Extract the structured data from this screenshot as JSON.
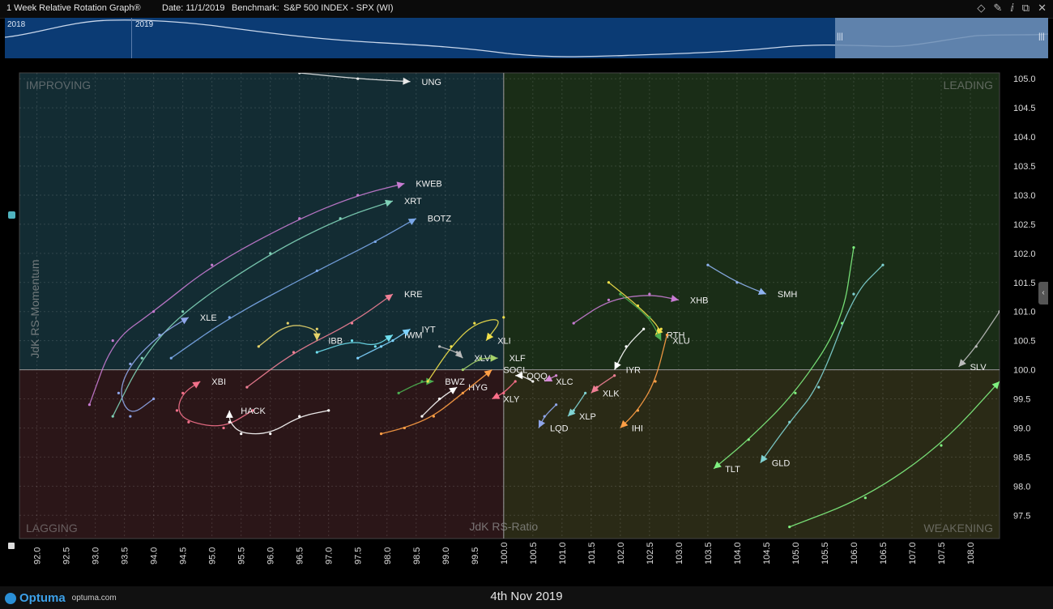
{
  "window": {
    "title": "1 Week Relative Rotation Graph®",
    "date_label": "Date: 11/1/2019",
    "benchmark_label": "Benchmark:",
    "benchmark_value": "S&P 500 INDEX - SPX (WI)"
  },
  "navigator": {
    "year_left": "2018",
    "year_right": "2019",
    "handle": "|||"
  },
  "footer": {
    "brand": "Optuma",
    "url": "optuma.com",
    "date": "4th Nov 2019"
  },
  "colors": {
    "improving": "#132c33",
    "leading": "#1a2d17",
    "lagging": "#2b1618",
    "weakening": "#2a2a16",
    "background": "#000000"
  },
  "chart_data": {
    "type": "scatter",
    "title": "1 Week Relative Rotation Graph®",
    "xlabel": "JdK RS-Ratio",
    "ylabel": "JdK RS-Momentum",
    "xlim": [
      91.7,
      108.5
    ],
    "ylim": [
      97.1,
      105.1
    ],
    "center": [
      100,
      100
    ],
    "grid": true,
    "x_ticks": [
      "92.0",
      "92.5",
      "93.0",
      "93.5",
      "94.0",
      "94.5",
      "95.0",
      "95.5",
      "96.0",
      "96.5",
      "97.0",
      "97.5",
      "98.0",
      "98.5",
      "99.0",
      "99.5",
      "100.0",
      "100.5",
      "101.0",
      "101.5",
      "102.0",
      "102.5",
      "103.0",
      "103.5",
      "104.0",
      "104.5",
      "105.0",
      "105.5",
      "106.0",
      "106.5",
      "107.0",
      "107.5",
      "108.0"
    ],
    "y_ticks": [
      "97.5",
      "98.0",
      "98.5",
      "99.0",
      "99.5",
      "100.0",
      "100.5",
      "101.0",
      "101.5",
      "102.0",
      "102.5",
      "103.0",
      "103.5",
      "104.0",
      "104.5",
      "105.0"
    ],
    "quadrants": {
      "top_left": "IMPROVING",
      "top_right": "LEADING",
      "bottom_left": "LAGGING",
      "bottom_right": "WEAKENING"
    },
    "series": [
      {
        "name": "UNG",
        "color": "#e8e8e8",
        "points": [
          [
            96.5,
            105.1
          ],
          [
            97.5,
            105.0
          ],
          [
            98.4,
            104.95
          ]
        ]
      },
      {
        "name": "KWEB",
        "color": "#c77bd2",
        "points": [
          [
            92.9,
            99.4
          ],
          [
            93.3,
            100.5
          ],
          [
            94.0,
            101.0
          ],
          [
            95.0,
            101.8
          ],
          [
            96.5,
            102.6
          ],
          [
            97.5,
            103.0
          ],
          [
            98.3,
            103.2
          ]
        ]
      },
      {
        "name": "XRT",
        "color": "#7fd1b7",
        "points": [
          [
            93.3,
            99.2
          ],
          [
            93.8,
            100.2
          ],
          [
            94.5,
            101.0
          ],
          [
            96.0,
            102.0
          ],
          [
            97.2,
            102.6
          ],
          [
            98.1,
            102.9
          ]
        ]
      },
      {
        "name": "BOTZ",
        "color": "#7aa7e8",
        "points": [
          [
            94.3,
            100.2
          ],
          [
            95.3,
            100.9
          ],
          [
            96.8,
            101.7
          ],
          [
            97.8,
            102.2
          ],
          [
            98.5,
            102.6
          ]
        ]
      },
      {
        "name": "XLE",
        "color": "#8fa6ea",
        "points": [
          [
            94.0,
            99.5
          ],
          [
            93.6,
            99.2
          ],
          [
            93.4,
            99.6
          ],
          [
            93.6,
            100.1
          ],
          [
            94.1,
            100.6
          ],
          [
            94.6,
            100.9
          ]
        ]
      },
      {
        "name": "KRE",
        "color": "#f07f95",
        "points": [
          [
            95.6,
            99.7
          ],
          [
            96.4,
            100.3
          ],
          [
            97.4,
            100.8
          ],
          [
            98.1,
            101.3
          ]
        ]
      },
      {
        "name": "XBI",
        "color": "#f2708a",
        "points": [
          [
            95.7,
            99.3
          ],
          [
            95.2,
            99.0
          ],
          [
            94.6,
            99.1
          ],
          [
            94.4,
            99.3
          ],
          [
            94.5,
            99.6
          ],
          [
            94.8,
            99.8
          ]
        ]
      },
      {
        "name": "HACK",
        "color": "#ffffff",
        "points": [
          [
            97.0,
            99.3
          ],
          [
            96.5,
            99.2
          ],
          [
            96.0,
            98.9
          ],
          [
            95.5,
            98.9
          ],
          [
            95.3,
            99.1
          ],
          [
            95.3,
            99.3
          ]
        ]
      },
      {
        "name": "IBB",
        "color": "#e6d36a",
        "points": [
          [
            95.8,
            100.4
          ],
          [
            96.3,
            100.8
          ],
          [
            96.8,
            100.7
          ],
          [
            96.8,
            100.5
          ]
        ]
      },
      {
        "name": "IWM",
        "color": "#6fe0f0",
        "points": [
          [
            96.8,
            100.3
          ],
          [
            97.4,
            100.5
          ],
          [
            97.8,
            100.4
          ],
          [
            98.1,
            100.6
          ]
        ]
      },
      {
        "name": "IYT",
        "color": "#7fd3ff",
        "points": [
          [
            97.5,
            100.2
          ],
          [
            97.9,
            100.4
          ],
          [
            98.1,
            100.5
          ],
          [
            98.4,
            100.7
          ]
        ]
      },
      {
        "name": "BWZ",
        "color": "#4caf50",
        "points": [
          [
            98.2,
            99.6
          ],
          [
            98.6,
            99.8
          ],
          [
            98.8,
            99.8
          ]
        ]
      },
      {
        "name": "HYG",
        "color": "#ffffff",
        "points": [
          [
            98.6,
            99.2
          ],
          [
            98.9,
            99.5
          ],
          [
            99.2,
            99.7
          ]
        ]
      },
      {
        "name": "SOCL",
        "color": "#ff9f45",
        "points": [
          [
            97.9,
            98.9
          ],
          [
            98.3,
            99.0
          ],
          [
            98.8,
            99.2
          ],
          [
            99.3,
            99.6
          ],
          [
            99.8,
            100.0
          ]
        ]
      },
      {
        "name": "XLV",
        "color": "#bbbbbb",
        "points": [
          [
            98.9,
            100.4
          ],
          [
            99.2,
            100.3
          ],
          [
            99.3,
            100.2
          ]
        ]
      },
      {
        "name": "XLI",
        "color": "#f2e14a",
        "points": [
          [
            98.7,
            99.8
          ],
          [
            99.1,
            100.4
          ],
          [
            99.5,
            100.8
          ],
          [
            100.0,
            100.9
          ],
          [
            99.7,
            100.5
          ]
        ]
      },
      {
        "name": "XLF",
        "color": "#a6d36a",
        "points": [
          [
            99.3,
            100.0
          ],
          [
            99.6,
            100.2
          ],
          [
            99.9,
            100.2
          ]
        ]
      },
      {
        "name": "XLY",
        "color": "#ff6f8a",
        "points": [
          [
            100.2,
            99.8
          ],
          [
            100.0,
            99.6
          ],
          [
            99.8,
            99.5
          ]
        ]
      },
      {
        "name": "QQQ",
        "color": "#ffffff",
        "points": [
          [
            100.5,
            99.8
          ],
          [
            100.3,
            99.9
          ],
          [
            100.2,
            99.9
          ]
        ]
      },
      {
        "name": "XLC",
        "color": "#d68ad6",
        "points": [
          [
            100.9,
            99.9
          ],
          [
            100.7,
            99.8
          ]
        ]
      },
      {
        "name": "XHB",
        "color": "#c77bd2",
        "points": [
          [
            101.2,
            100.8
          ],
          [
            101.8,
            101.2
          ],
          [
            102.5,
            101.3
          ],
          [
            103.0,
            101.2
          ]
        ]
      },
      {
        "name": "SMH",
        "color": "#8fb3f0",
        "points": [
          [
            103.5,
            101.8
          ],
          [
            104.0,
            101.5
          ],
          [
            104.5,
            101.3
          ]
        ]
      },
      {
        "name": "RTH",
        "color": "#f2e14a",
        "points": [
          [
            101.8,
            101.5
          ],
          [
            102.3,
            101.1
          ],
          [
            102.7,
            100.7
          ],
          [
            102.6,
            100.6
          ]
        ]
      },
      {
        "name": "XLU",
        "color": "#4caf50",
        "points": [
          [
            102.0,
            101.3
          ],
          [
            102.5,
            100.9
          ],
          [
            102.7,
            100.5
          ]
        ]
      },
      {
        "name": "IYR",
        "color": "#ffffff",
        "points": [
          [
            102.4,
            100.7
          ],
          [
            102.1,
            100.4
          ],
          [
            101.9,
            100.0
          ]
        ]
      },
      {
        "name": "XLK",
        "color": "#f07f95",
        "points": [
          [
            101.9,
            99.9
          ],
          [
            101.6,
            99.7
          ],
          [
            101.5,
            99.6
          ]
        ]
      },
      {
        "name": "XLP",
        "color": "#7fd3d3",
        "points": [
          [
            101.4,
            99.6
          ],
          [
            101.2,
            99.3
          ],
          [
            101.1,
            99.2
          ]
        ]
      },
      {
        "name": "LQD",
        "color": "#8fa6ea",
        "points": [
          [
            100.9,
            99.4
          ],
          [
            100.7,
            99.2
          ],
          [
            100.6,
            99.0
          ]
        ]
      },
      {
        "name": "IHI",
        "color": "#ff9f45",
        "points": [
          [
            102.8,
            100.6
          ],
          [
            102.6,
            99.8
          ],
          [
            102.3,
            99.3
          ],
          [
            102.0,
            99.0
          ]
        ]
      },
      {
        "name": "GLD",
        "color": "#7fd3d3",
        "points": [
          [
            106.5,
            101.8
          ],
          [
            106.0,
            101.3
          ],
          [
            105.4,
            99.7
          ],
          [
            104.9,
            99.1
          ],
          [
            104.4,
            98.4
          ]
        ]
      },
      {
        "name": "TLT",
        "color": "#7ff07f",
        "points": [
          [
            106.0,
            102.1
          ],
          [
            105.8,
            100.8
          ],
          [
            105.0,
            99.6
          ],
          [
            104.2,
            98.8
          ],
          [
            103.6,
            98.3
          ]
        ]
      },
      {
        "name": "SLV",
        "color": "#bbbbbb",
        "points": [
          [
            108.5,
            101.0
          ],
          [
            108.1,
            100.4
          ],
          [
            107.8,
            100.05
          ]
        ]
      },
      {
        "name": "TLT-trail",
        "color": "#7ff07f",
        "points": [
          [
            104.9,
            97.3
          ],
          [
            106.2,
            97.8
          ],
          [
            107.5,
            98.7
          ],
          [
            108.5,
            99.8
          ]
        ]
      }
    ]
  }
}
